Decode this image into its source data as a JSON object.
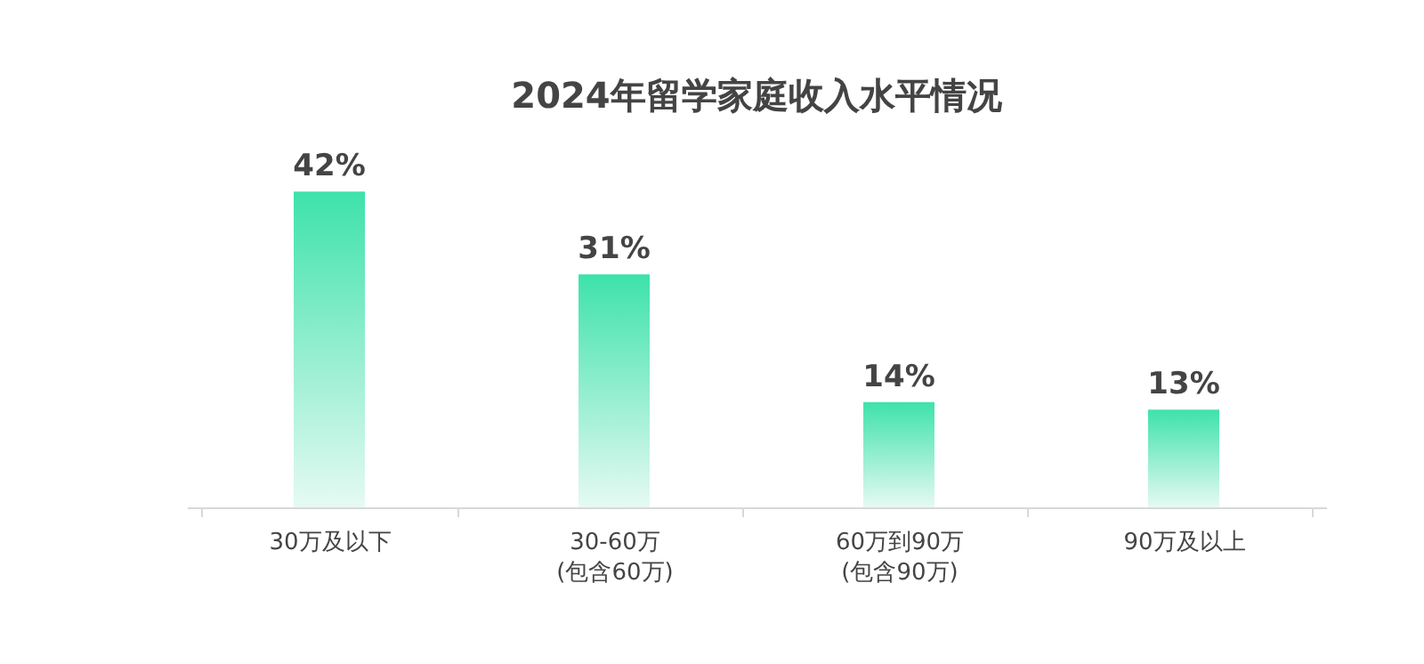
{
  "chart_data": {
    "type": "bar",
    "title": "2024年留学家庭收入水平情况",
    "categories": [
      "30万及以下",
      "30-60万\n(包含60万)",
      "60万到90万\n(包含90万)",
      "90万及以上"
    ],
    "values": [
      42,
      31,
      14,
      13
    ],
    "color": "#3ee2aa",
    "value_labels": [
      "42%",
      "31%",
      "14%",
      "13%"
    ]
  }
}
